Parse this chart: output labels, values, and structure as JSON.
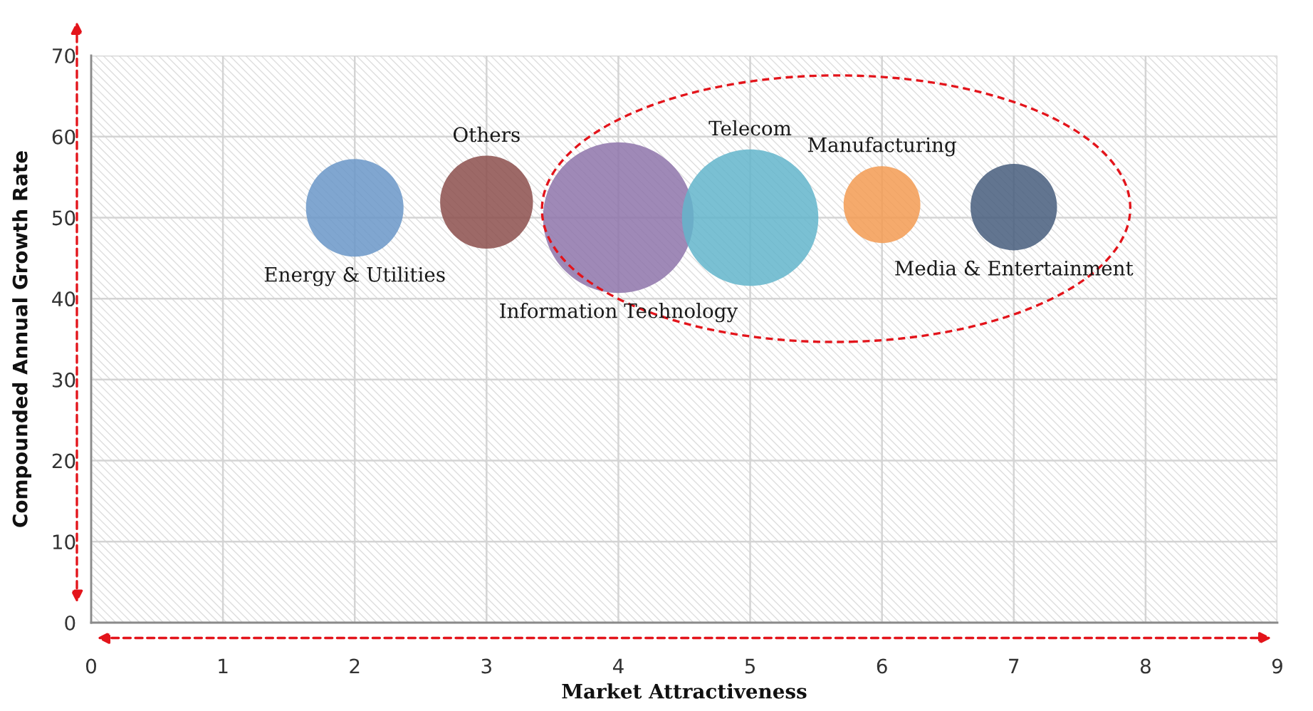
{
  "chart_data": {
    "type": "bubble",
    "xlabel": "Market Attractiveness",
    "ylabel": "Compounded Annual Growth Rate",
    "xlim": [
      0,
      9
    ],
    "ylim": [
      0,
      70
    ],
    "xticks": [
      0,
      1,
      2,
      3,
      4,
      5,
      6,
      7,
      8,
      9
    ],
    "yticks": [
      0,
      10,
      20,
      30,
      40,
      50,
      60,
      70
    ],
    "grid": true,
    "series": [
      {
        "name": "Energy & Utilities",
        "color": "#6a96c8",
        "x": [
          2
        ],
        "values": [
          51.2
        ],
        "sizes": [
          0.42
        ]
      },
      {
        "name": "Others",
        "color": "#8c4f4c",
        "x": [
          3
        ],
        "values": [
          51.9
        ],
        "sizes": [
          0.38
        ]
      },
      {
        "name": "Information Technology",
        "color": "#8e74aa",
        "x": [
          4
        ],
        "values": [
          50
        ],
        "sizes": [
          1
        ]
      },
      {
        "name": "Telecom",
        "color": "#63b5cb",
        "x": [
          5
        ],
        "values": [
          50
        ],
        "sizes": [
          0.82
        ]
      },
      {
        "name": "Manufacturing",
        "color": "#f39b52",
        "x": [
          6
        ],
        "values": [
          51.6
        ],
        "sizes": [
          0.26
        ]
      },
      {
        "name": "Media & Entertainment",
        "color": "#475d7c",
        "x": [
          7
        ],
        "values": [
          51.3
        ],
        "sizes": [
          0.33
        ]
      }
    ]
  }
}
